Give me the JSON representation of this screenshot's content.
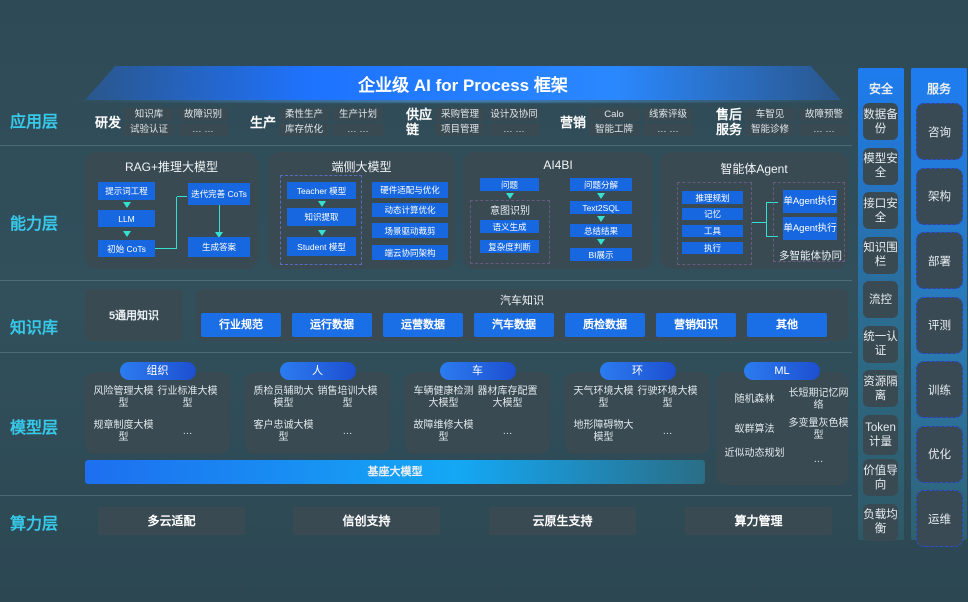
{
  "title": "企业级 AI for Process 框架",
  "layers": [
    "应用层",
    "能力层",
    "知识库",
    "模型层",
    "算力层"
  ],
  "app": {
    "groups": [
      {
        "name": "研发",
        "items": [
          "知识库",
          "故障识别",
          "试验认证",
          "… …"
        ]
      },
      {
        "name": "生产",
        "items": [
          "柔性生产",
          "生产计划",
          "库存优化",
          "… …"
        ]
      },
      {
        "name": "供应链",
        "items": [
          "采购管理",
          "设计及协同",
          "项目管理",
          "… …"
        ]
      },
      {
        "name": "营销",
        "items": [
          "Calo",
          "线索评级",
          "智能工牌",
          "… …"
        ]
      },
      {
        "name": "售后服务",
        "items": [
          "车智见",
          "故障预警",
          "智能诊修",
          "… …"
        ]
      }
    ]
  },
  "capability": {
    "rag": {
      "title": "RAG+推理大模型",
      "boxes": [
        "提示词工程",
        "LLM",
        "初始 CoTs",
        "迭代完善 CoTs",
        "生成答案"
      ]
    },
    "edge": {
      "title": "端侧大模型",
      "left": [
        "Teacher 模型",
        "知识提取",
        "Student 模型"
      ],
      "right": [
        "硬件适配与优化",
        "动态计算优化",
        "场景驱动裁剪",
        "端云协同架构"
      ]
    },
    "ai4bi": {
      "title": "AI4BI",
      "question": "问题",
      "intent": "意图识别",
      "intent_items": [
        "语义生成",
        "复杂度判断"
      ],
      "right": [
        "问题分解",
        "Text2SQL",
        "总结结果",
        "BI展示"
      ]
    },
    "agent": {
      "title": "智能体Agent",
      "items": [
        "推理规划",
        "记忆",
        "工具",
        "执行"
      ],
      "exec": [
        "单Agent执行",
        "单Agent执行"
      ],
      "multi": "多智能体协同"
    }
  },
  "knowledge": {
    "general": "5通用知识",
    "auto_title": "汽车知识",
    "auto_items": [
      "行业规范",
      "运行数据",
      "运营数据",
      "汽车数据",
      "质检数据",
      "营销知识",
      "其他"
    ]
  },
  "model": {
    "groups": [
      {
        "name": "组织",
        "items": [
          "风险管理大模型",
          "行业标准大模型",
          "规章制度大模型",
          "…"
        ]
      },
      {
        "name": "人",
        "items": [
          "质检员辅助大模型",
          "销售培训大模型",
          "客户忠诚大模型",
          "…"
        ]
      },
      {
        "name": "车",
        "items": [
          "车辆健康检测大模型",
          "器材库存配置大模型",
          "故障维修大模型",
          "…"
        ]
      },
      {
        "name": "环",
        "items": [
          "天气环境大模型",
          "行驶环境大模型",
          "地形障碍物大模型",
          "…"
        ]
      },
      {
        "name": "ML",
        "items": [
          "随机森林",
          "长短期记忆网络",
          "蚁群算法",
          "多变量灰色模型",
          "近似动态规划",
          "…"
        ]
      }
    ],
    "base": "基座大模型"
  },
  "compute": [
    "多云适配",
    "信创支持",
    "云原生支持",
    "算力管理"
  ],
  "security": {
    "title": "安全",
    "items": [
      "数据备份",
      "模型安全",
      "接口安全",
      "知识围栏",
      "流控",
      "统一认证",
      "资源隔离",
      "Token计量",
      "价值导向",
      "负载均衡"
    ]
  },
  "services": {
    "title": "服务",
    "items": [
      "咨询",
      "架构",
      "部署",
      "评测",
      "训练",
      "优化",
      "运维"
    ]
  },
  "colors": {
    "accent": "#1768e0",
    "layer_label": "#38c8e8",
    "panel": "#394a52",
    "arrow": "#35e0d0"
  }
}
